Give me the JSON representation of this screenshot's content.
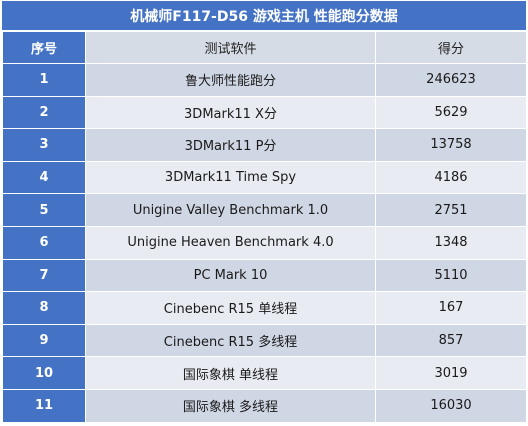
{
  "title": "机械师F117-D56 游戏主机 性能跑分数据",
  "headers": {
    "index": "序号",
    "software": "测试软件",
    "score": "得分"
  },
  "rows": [
    {
      "index": "1",
      "software": "鲁大师性能跑分",
      "score": "246623"
    },
    {
      "index": "2",
      "software": "3DMark11 X分",
      "score": "5629"
    },
    {
      "index": "3",
      "software": "3DMark11 P分",
      "score": "13758"
    },
    {
      "index": "4",
      "software": "3DMark11 Time Spy",
      "score": "4186"
    },
    {
      "index": "5",
      "software": "Unigine Valley Benchmark 1.0",
      "score": "2751"
    },
    {
      "index": "6",
      "software": "Unigine Heaven Benchmark 4.0",
      "score": "1348"
    },
    {
      "index": "7",
      "software": "PC Mark 10",
      "score": "5110"
    },
    {
      "index": "8",
      "software": "Cinebenc R15 单线程",
      "score": "167"
    },
    {
      "index": "9",
      "software": "Cinebenc R15 多线程",
      "score": "857"
    },
    {
      "index": "10",
      "software": "国际象棋 单线程",
      "score": "3019"
    },
    {
      "index": "11",
      "software": "国际象棋 多线程",
      "score": "16030"
    }
  ],
  "colors": {
    "header_blue": "#4472c4",
    "row_dark": "#cfd6e4",
    "row_light": "#e8ebf1",
    "header_gray": "#d6dce5"
  }
}
